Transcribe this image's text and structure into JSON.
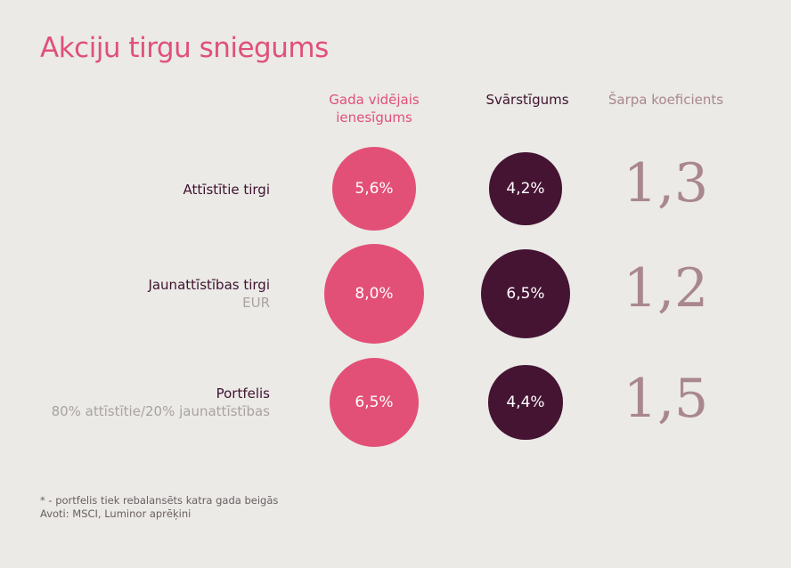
{
  "title": "Akciju tirgu sniegums",
  "columns": {
    "return": "Gada vidējais ienesīgums",
    "volatility": "Svārstīgums",
    "sharpe": "Šarpa koeficients"
  },
  "rows": [
    {
      "label": "Attīstītie tirgi",
      "sub": "",
      "return_label": "5,6%",
      "volatility_label": "4,2%",
      "sharpe_label": "1,3"
    },
    {
      "label": "Jaunattīstības tirgi",
      "sub": "EUR",
      "return_label": "8,0%",
      "volatility_label": "6,5%",
      "sharpe_label": "1,2"
    },
    {
      "label": "Portfelis",
      "sub": "80% attīstītie/20% jaunattīstības",
      "return_label": "6,5%",
      "volatility_label": "4,4%",
      "sharpe_label": "1,5"
    }
  ],
  "footnote": {
    "line1": "* - portfelis tiek rebalansēts katra gada beigās",
    "line2": "Avoti: MSCI, Luminor aprēķini"
  },
  "colors": {
    "return": "#e35077",
    "volatility": "#451433",
    "sharpe": "#a9878e",
    "background": "#ebeae6"
  },
  "chart_data": {
    "type": "table",
    "categories": [
      "Attīstītie tirgi",
      "Jaunattīstības tirgi",
      "Portfelis"
    ],
    "series": [
      {
        "name": "Gada vidējais ienesīgums",
        "values": [
          5.6,
          8.0,
          6.5
        ]
      },
      {
        "name": "Svārstīgums",
        "values": [
          4.2,
          6.5,
          4.4
        ]
      },
      {
        "name": "Šarpa koeficients",
        "values": [
          1.3,
          1.2,
          1.5
        ]
      }
    ],
    "title": "Akciju tirgu sniegums"
  }
}
